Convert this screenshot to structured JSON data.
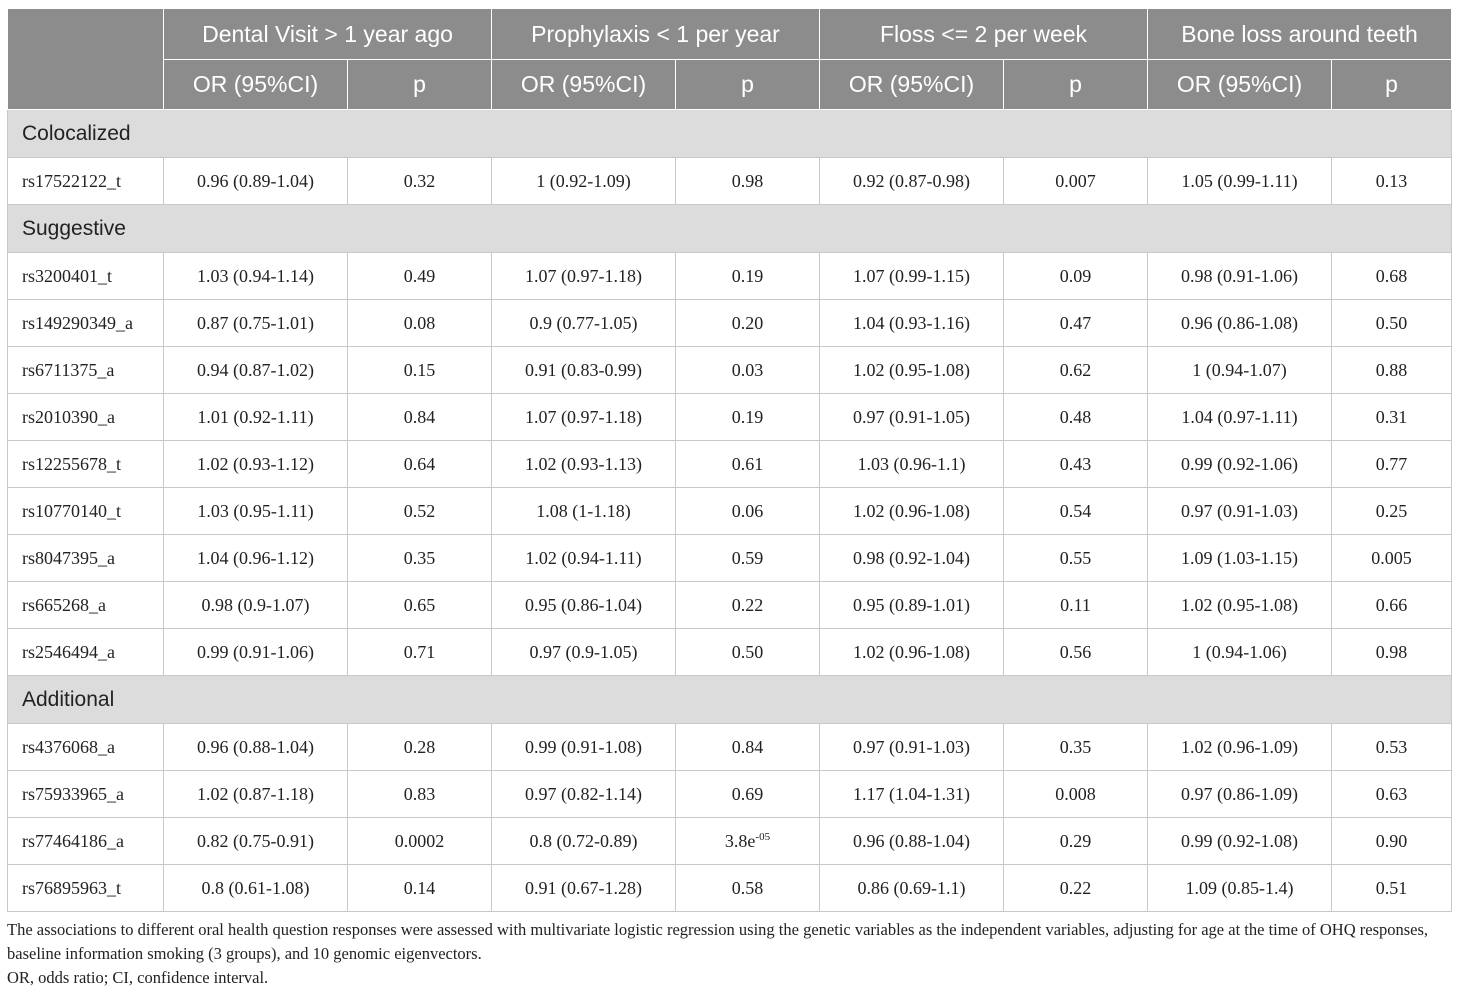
{
  "header": {
    "corner": "",
    "groups": [
      "Dental Visit > 1 year ago",
      "Prophylaxis < 1 per year",
      "Floss <= 2 per week",
      "Bone loss around teeth"
    ],
    "or_label": "OR (95%CI)",
    "p_label": "p"
  },
  "sections": [
    {
      "title": "Colocalized",
      "rows": [
        {
          "snp": "rs17522122_t",
          "cells": [
            "0.96 (0.89-1.04)",
            "0.32",
            "1 (0.92-1.09)",
            "0.98",
            "0.92 (0.87-0.98)",
            "0.007",
            "1.05 (0.99-1.11)",
            "0.13"
          ]
        }
      ]
    },
    {
      "title": "Suggestive",
      "rows": [
        {
          "snp": "rs3200401_t",
          "cells": [
            "1.03 (0.94-1.14)",
            "0.49",
            "1.07 (0.97-1.18)",
            "0.19",
            "1.07 (0.99-1.15)",
            "0.09",
            "0.98 (0.91-1.06)",
            "0.68"
          ]
        },
        {
          "snp": "rs149290349_a",
          "cells": [
            "0.87 (0.75-1.01)",
            "0.08",
            "0.9 (0.77-1.05)",
            "0.20",
            "1.04 (0.93-1.16)",
            "0.47",
            "0.96 (0.86-1.08)",
            "0.50"
          ]
        },
        {
          "snp": "rs6711375_a",
          "cells": [
            "0.94 (0.87-1.02)",
            "0.15",
            "0.91 (0.83-0.99)",
            "0.03",
            "1.02 (0.95-1.08)",
            "0.62",
            "1 (0.94-1.07)",
            "0.88"
          ]
        },
        {
          "snp": "rs2010390_a",
          "cells": [
            "1.01 (0.92-1.11)",
            "0.84",
            "1.07 (0.97-1.18)",
            "0.19",
            "0.97 (0.91-1.05)",
            "0.48",
            "1.04 (0.97-1.11)",
            "0.31"
          ]
        },
        {
          "snp": "rs12255678_t",
          "cells": [
            "1.02 (0.93-1.12)",
            "0.64",
            "1.02 (0.93-1.13)",
            "0.61",
            "1.03 (0.96-1.1)",
            "0.43",
            "0.99 (0.92-1.06)",
            "0.77"
          ]
        },
        {
          "snp": "rs10770140_t",
          "cells": [
            "1.03 (0.95-1.11)",
            "0.52",
            "1.08 (1-1.18)",
            "0.06",
            "1.02 (0.96-1.08)",
            "0.54",
            "0.97 (0.91-1.03)",
            "0.25"
          ]
        },
        {
          "snp": "rs8047395_a",
          "cells": [
            "1.04 (0.96-1.12)",
            "0.35",
            "1.02 (0.94-1.11)",
            "0.59",
            "0.98 (0.92-1.04)",
            "0.55",
            "1.09 (1.03-1.15)",
            "0.005"
          ]
        },
        {
          "snp": "rs665268_a",
          "cells": [
            "0.98 (0.9-1.07)",
            "0.65",
            "0.95 (0.86-1.04)",
            "0.22",
            "0.95 (0.89-1.01)",
            "0.11",
            "1.02 (0.95-1.08)",
            "0.66"
          ]
        },
        {
          "snp": "rs2546494_a",
          "cells": [
            "0.99 (0.91-1.06)",
            "0.71",
            "0.97 (0.9-1.05)",
            "0.50",
            "1.02 (0.96-1.08)",
            "0.56",
            "1 (0.94-1.06)",
            "0.98"
          ]
        }
      ]
    },
    {
      "title": "Additional",
      "rows": [
        {
          "snp": "rs4376068_a",
          "cells": [
            "0.96 (0.88-1.04)",
            "0.28",
            "0.99 (0.91-1.08)",
            "0.84",
            "0.97 (0.91-1.03)",
            "0.35",
            "1.02 (0.96-1.09)",
            "0.53"
          ]
        },
        {
          "snp": "rs75933965_a",
          "cells": [
            "1.02 (0.87-1.18)",
            "0.83",
            "0.97 (0.82-1.14)",
            "0.69",
            "1.17 (1.04-1.31)",
            "0.008",
            "0.97 (0.86-1.09)",
            "0.63"
          ]
        },
        {
          "snp": "rs77464186_a",
          "cells": [
            "0.82 (0.75-0.91)",
            "0.0002",
            "0.8 (0.72-0.89)",
            "3.8e|-05",
            "0.96 (0.88-1.04)",
            "0.29",
            "0.99 (0.92-1.08)",
            "0.90"
          ]
        },
        {
          "snp": "rs76895963_t",
          "cells": [
            "0.8 (0.61-1.08)",
            "0.14",
            "0.91 (0.67-1.28)",
            "0.58",
            "0.86 (0.69-1.1)",
            "0.22",
            "1.09 (0.85-1.4)",
            "0.51"
          ]
        }
      ]
    }
  ],
  "notes": [
    "The associations to different oral health question responses were assessed with multivariate logistic regression using the genetic variables as the independent variables, adjusting for age at the time of OHQ responses, baseline information smoking (3 groups), and 10 genomic eigenvectors.",
    "OR, odds ratio; CI, confidence interval."
  ]
}
